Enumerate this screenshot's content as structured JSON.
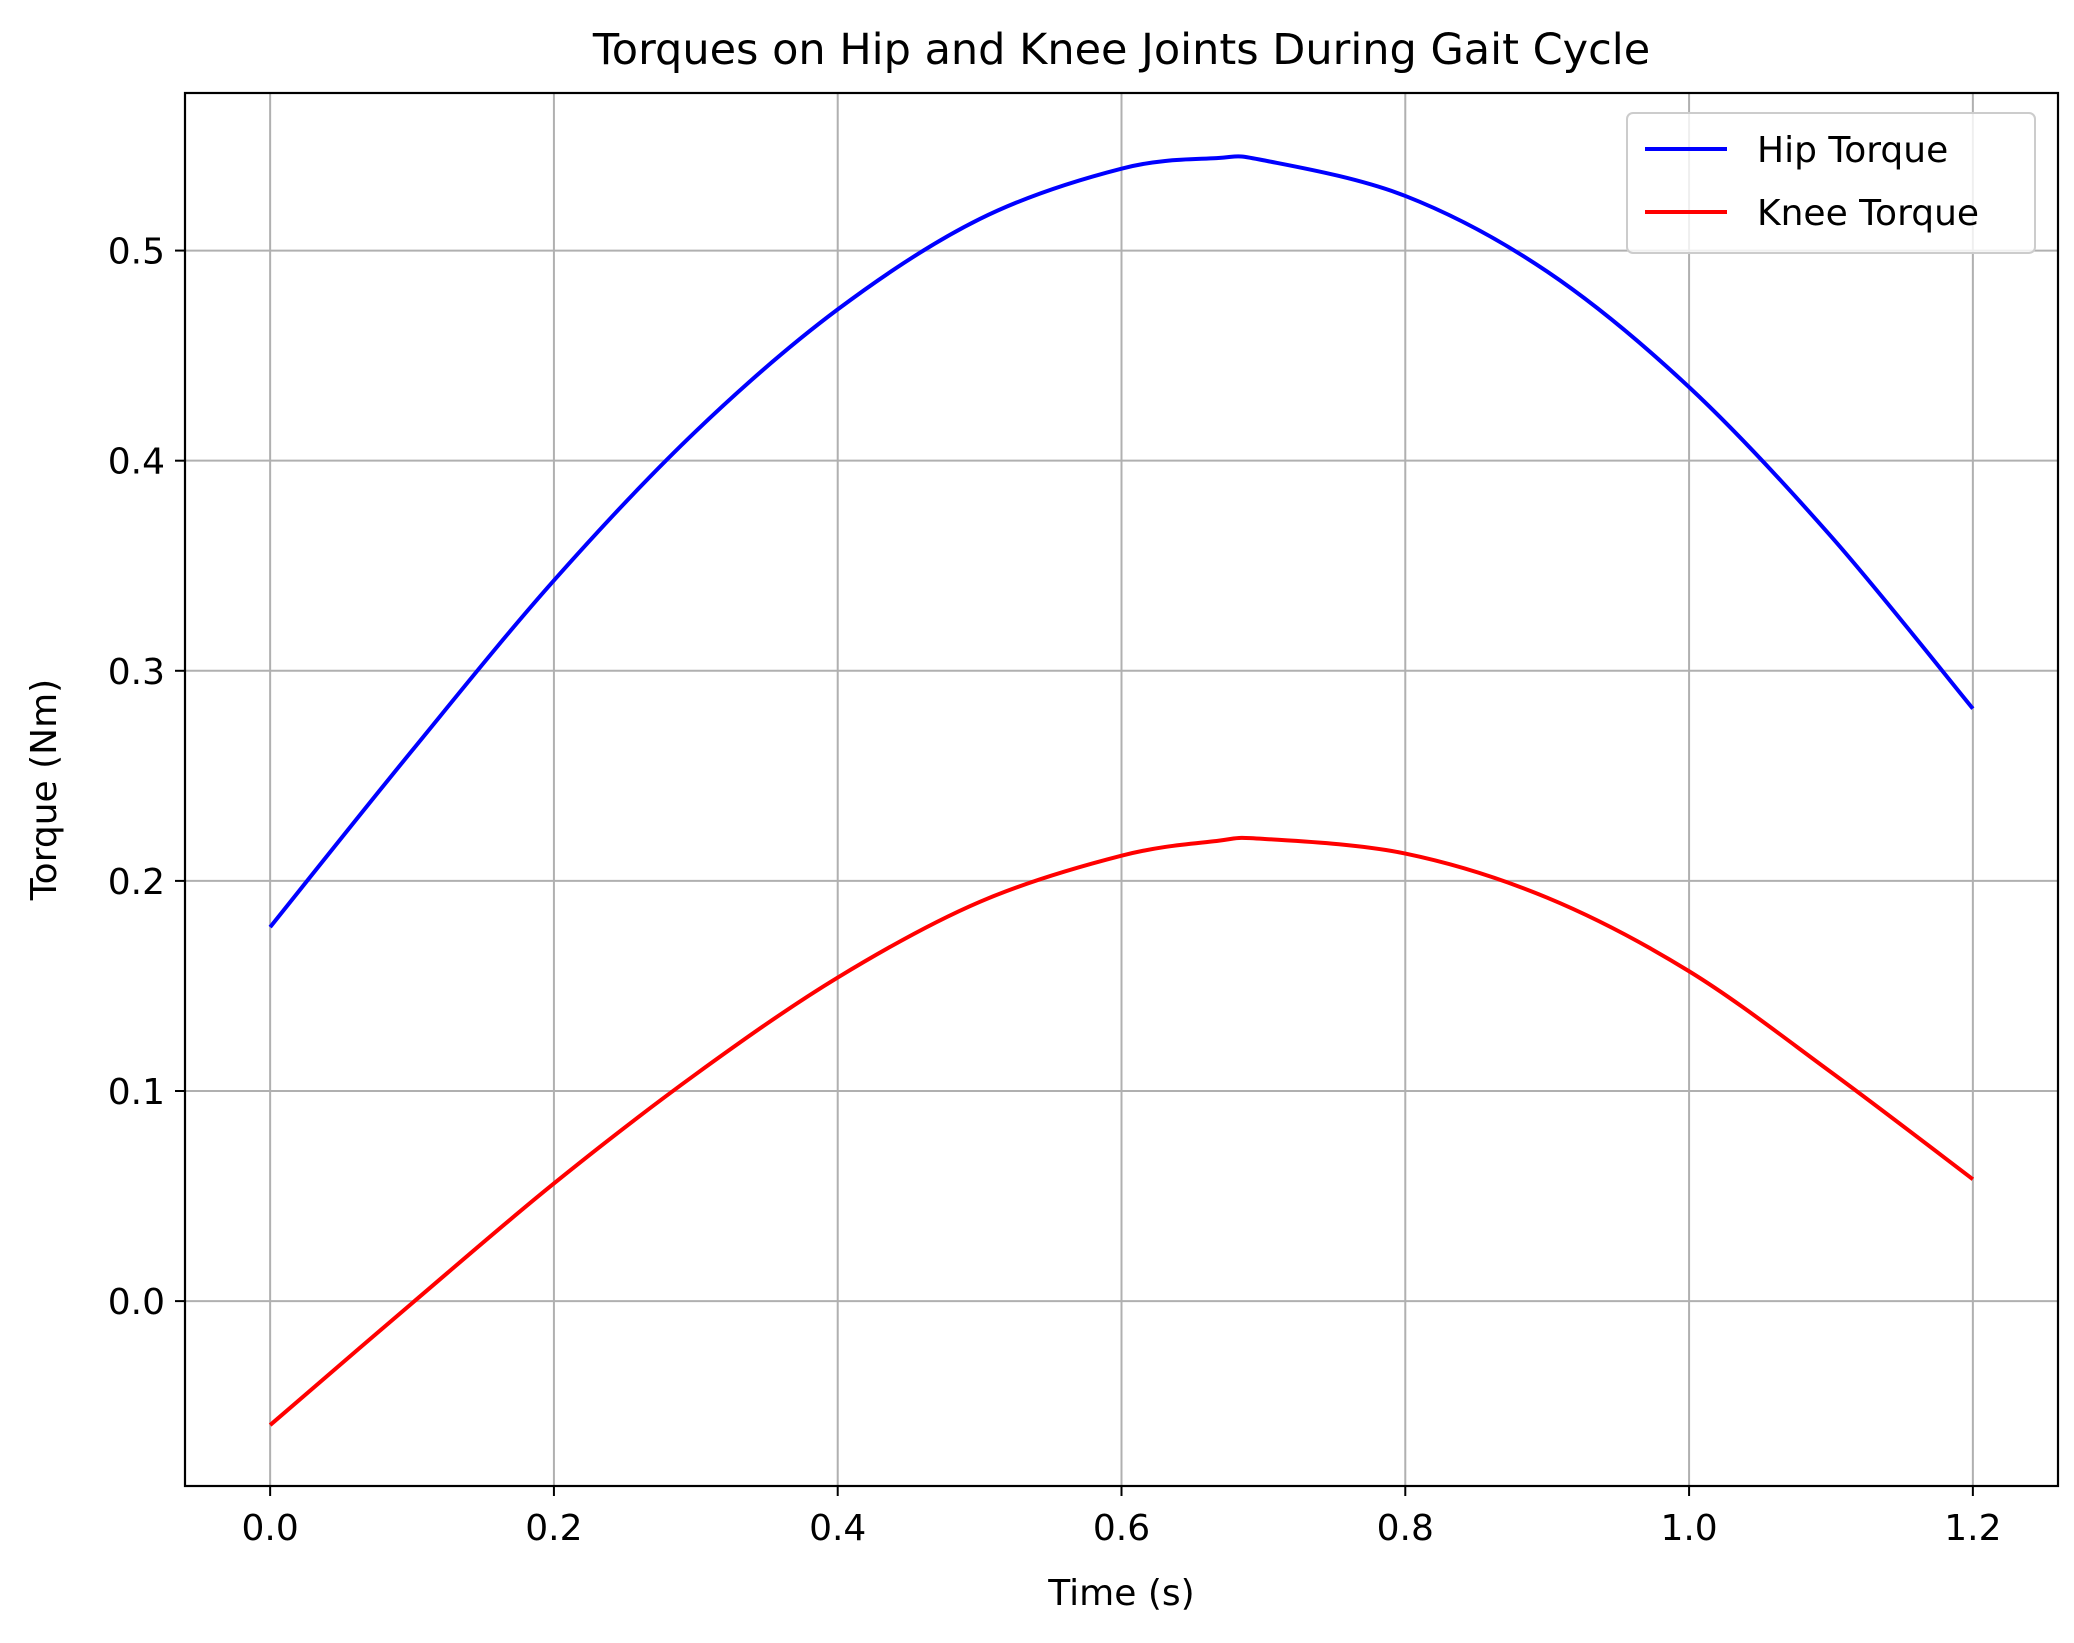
{
  "chart_data": {
    "type": "line",
    "title": "Torques on Hip and Knee Joints During Gait Cycle",
    "xlabel": "Time (s)",
    "ylabel": "Torque (Nm)",
    "xlim": [
      -0.06,
      1.26
    ],
    "ylim": [
      -0.088,
      0.575
    ],
    "xticks": [
      0.0,
      0.2,
      0.4,
      0.6,
      0.8,
      1.0,
      1.2
    ],
    "xtick_labels": [
      "0.0",
      "0.2",
      "0.4",
      "0.6",
      "0.8",
      "1.0",
      "1.2"
    ],
    "yticks": [
      0.0,
      0.1,
      0.2,
      0.3,
      0.4,
      0.5
    ],
    "ytick_labels": [
      "0.0",
      "0.1",
      "0.2",
      "0.3",
      "0.4",
      "0.5"
    ],
    "grid": true,
    "legend_position": "top-right",
    "x": [
      0.0,
      0.1,
      0.2,
      0.3,
      0.4,
      0.5,
      0.6,
      0.667,
      0.7,
      0.8,
      0.9,
      1.0,
      1.1,
      1.2
    ],
    "series": [
      {
        "name": "Hip Torque",
        "color": "#0000ff",
        "values": [
          0.178,
          0.262,
          0.343,
          0.414,
          0.472,
          0.515,
          0.539,
          0.544,
          0.543,
          0.526,
          0.49,
          0.435,
          0.364,
          0.282
        ]
      },
      {
        "name": "Knee Torque",
        "color": "#ff0000",
        "values": [
          -0.059,
          -0.001,
          0.056,
          0.108,
          0.154,
          0.19,
          0.212,
          0.219,
          0.22,
          0.213,
          0.192,
          0.157,
          0.109,
          0.058
        ]
      }
    ]
  }
}
